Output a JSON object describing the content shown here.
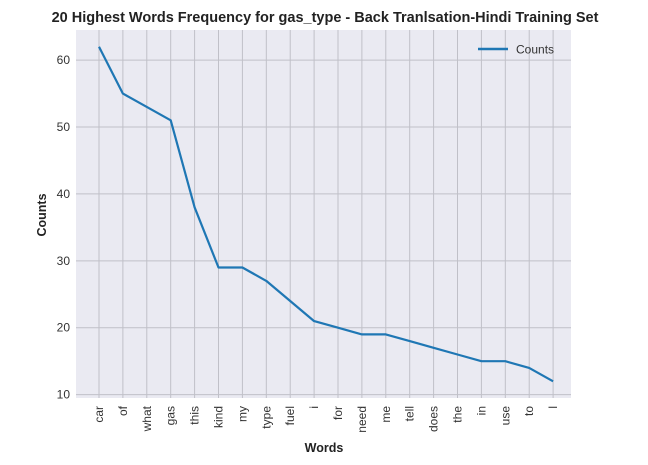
{
  "chart_data": {
    "type": "line",
    "title": "20 Highest Words Frequency for gas_type - Back Tranlsation-Hindi Training Set",
    "xlabel": "Words",
    "ylabel": "Counts",
    "categories": [
      "car",
      "of",
      "what",
      "gas",
      "this",
      "kind",
      "my",
      "type",
      "fuel",
      "i",
      "for",
      "need",
      "me",
      "tell",
      "does",
      "the",
      "in",
      "use",
      "to",
      "l"
    ],
    "series": [
      {
        "name": "Counts",
        "color": "#1f77b4",
        "values": [
          62,
          55,
          53,
          51,
          38,
          29,
          29,
          27,
          24,
          21,
          20,
          19,
          19,
          18,
          17,
          16,
          15,
          15,
          14,
          12
        ]
      }
    ],
    "ylim": [
      9.5,
      64.5
    ],
    "yticks": [
      10,
      20,
      30,
      40,
      50,
      60
    ],
    "grid": true,
    "legend": "top-right",
    "colors": {
      "background": "#eaeaf2",
      "grid": "#c0c0c8",
      "line": "#1f77b4"
    }
  }
}
